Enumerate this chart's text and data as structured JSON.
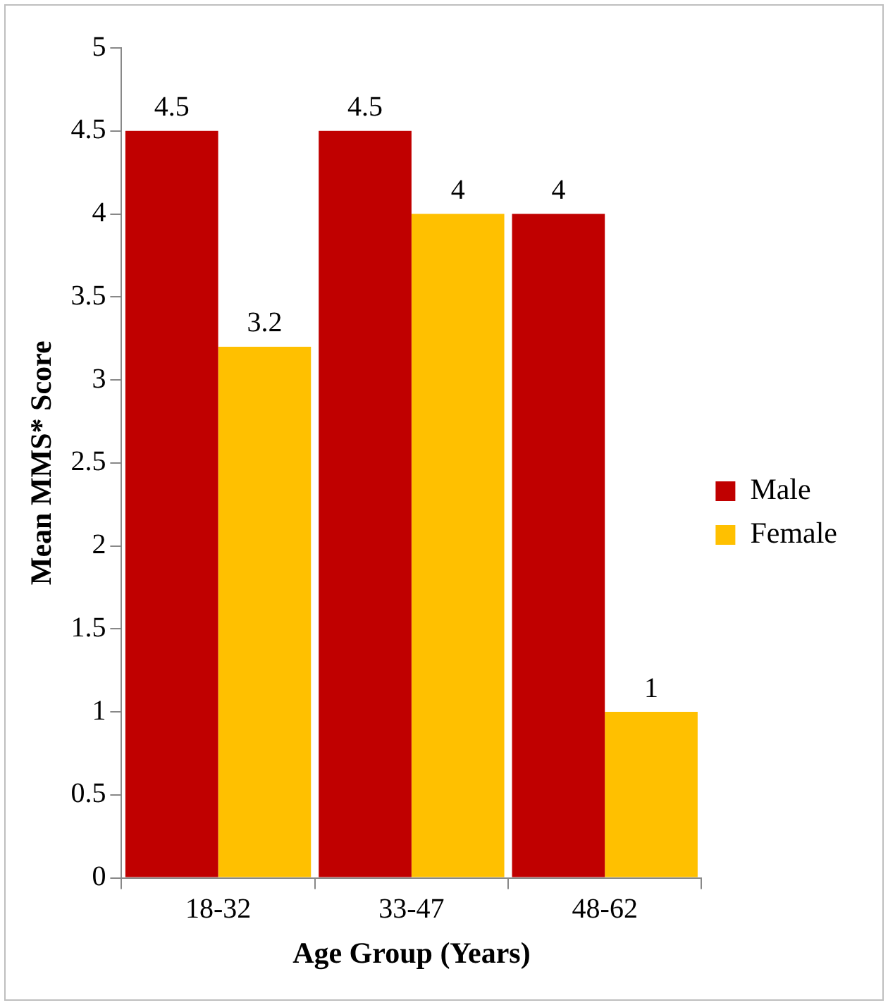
{
  "chart_data": {
    "type": "bar",
    "xlabel": "Age Group (Years)",
    "ylabel": "Mean MMS* Score",
    "categories": [
      "18-32",
      "33-47",
      "48-62"
    ],
    "series": [
      {
        "name": "Male",
        "color": "#c00000",
        "values": [
          4.5,
          4.5,
          4
        ]
      },
      {
        "name": "Female",
        "color": "#ffc000",
        "values": [
          3.2,
          4,
          1
        ]
      }
    ],
    "ylim": [
      0,
      5
    ],
    "yticks": [
      0,
      0.5,
      1,
      1.5,
      2,
      2.5,
      3,
      3.5,
      4,
      4.5,
      5
    ],
    "grid": false,
    "legend": "right",
    "data_labels": true
  }
}
